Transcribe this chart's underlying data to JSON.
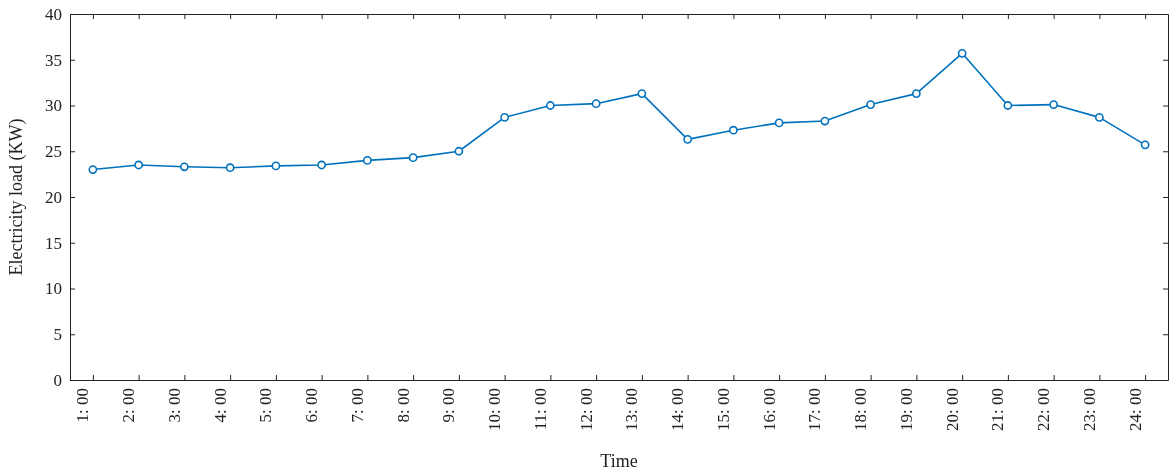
{
  "chart_data": {
    "type": "line",
    "xlabel": "Time",
    "ylabel": "Electricity load (KW)",
    "categories": [
      "1: 00",
      "2: 00",
      "3: 00",
      "4: 00",
      "5: 00",
      "6: 00",
      "7: 00",
      "8: 00",
      "9: 00",
      "10: 00",
      "11: 00",
      "12: 00",
      "13: 00",
      "14: 00",
      "15: 00",
      "16: 00",
      "17: 00",
      "18: 00",
      "19: 00",
      "20: 00",
      "21: 00",
      "22: 00",
      "23: 00",
      "24: 00"
    ],
    "series": [
      {
        "color": "#0072bd",
        "values": [
          23,
          23.5,
          23.3,
          23.2,
          23.4,
          23.5,
          24,
          24.3,
          25,
          28.7,
          30,
          30.2,
          31.3,
          26.3,
          27.3,
          28.1,
          28.3,
          30.1,
          31.3,
          35.7,
          30,
          30.1,
          28.7,
          25.7
        ]
      }
    ],
    "ylim": [
      0,
      40
    ],
    "yticks": [
      0,
      5,
      10,
      15,
      20,
      25,
      30,
      35,
      40
    ],
    "marker": "circle",
    "line_style": "solid",
    "grid": false
  }
}
